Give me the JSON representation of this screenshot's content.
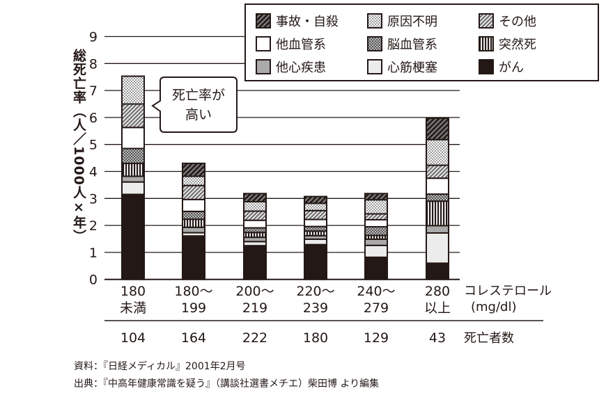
{
  "chart_data": {
    "type": "bar",
    "stacked": true,
    "ylabel": "総死亡率（人／1000人×年）",
    "ylim": [
      0,
      9
    ],
    "yticks": [
      "0",
      "1",
      "2",
      "3",
      "4",
      "5",
      "6",
      "7",
      "8",
      "9"
    ],
    "grid": true,
    "legend_position": "top-right",
    "categories": [
      [
        "180",
        "未満"
      ],
      [
        "180～",
        "199"
      ],
      [
        "200～",
        "219"
      ],
      [
        "220～",
        "239"
      ],
      [
        "240～",
        "279"
      ],
      [
        "280",
        "以上"
      ]
    ],
    "xlabel": [
      "コレステロール",
      "(mg/dl)"
    ],
    "deaths_label": "死亡者数",
    "deaths": [
      "104",
      "164",
      "222",
      "180",
      "129",
      "43"
    ],
    "series": [
      {
        "name": "がん",
        "pattern": "solid-black",
        "values": [
          3.15,
          1.61,
          1.25,
          1.29,
          0.82,
          0.6
        ]
      },
      {
        "name": "心筋梗塞",
        "pattern": "light-gray",
        "values": [
          0.46,
          0.12,
          0.15,
          0.2,
          0.44,
          1.12
        ]
      },
      {
        "name": "他心疾患",
        "pattern": "gray",
        "values": [
          0.21,
          0.2,
          0.16,
          0.13,
          0.23,
          0.27
        ]
      },
      {
        "name": "突然死",
        "pattern": "vertical-stripes",
        "values": [
          0.48,
          0.3,
          0.18,
          0.17,
          0.14,
          0.91
        ]
      },
      {
        "name": "脳血管系",
        "pattern": "checker",
        "values": [
          0.55,
          0.29,
          0.17,
          0.17,
          0.32,
          0.26
        ]
      },
      {
        "name": "他血管系",
        "pattern": "white",
        "values": [
          0.78,
          0.44,
          0.28,
          0.26,
          0.26,
          0.59
        ]
      },
      {
        "name": "その他",
        "pattern": "diagonal-hatch",
        "values": [
          0.87,
          0.52,
          0.34,
          0.33,
          0.22,
          0.48
        ]
      },
      {
        "name": "原因不明",
        "pattern": "dots",
        "values": [
          1.03,
          0.34,
          0.35,
          0.27,
          0.52,
          0.95
        ]
      },
      {
        "name": "事故・自殺",
        "pattern": "dark-hatch",
        "values": [
          0,
          0.48,
          0.3,
          0.25,
          0.23,
          0.79
        ]
      }
    ],
    "legend_order": [
      "事故・自殺",
      "原因不明",
      "その他",
      "他血管系",
      "脳血管系",
      "突然死",
      "他心疾患",
      "心筋梗塞",
      "がん"
    ],
    "annotation": [
      "死亡率が",
      "高い"
    ]
  },
  "source": {
    "line1": "資料：『日経メディカル』2001年2月号",
    "line2": "出典：『中高年健康常識を疑う』（講談社選書メチエ）柴田博 より編集"
  }
}
